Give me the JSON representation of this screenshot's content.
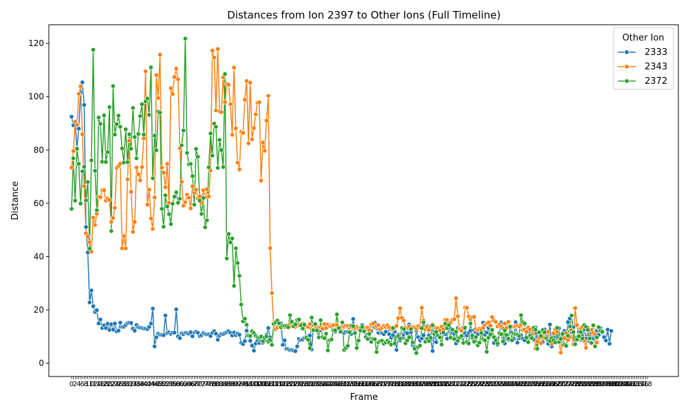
{
  "chart_data": {
    "type": "line",
    "title": "Distances from Ion 2397 to Other Ions (Full Timeline)",
    "xlabel": "Frame",
    "ylabel": "Distance",
    "ylim": [
      -5,
      127
    ],
    "y_ticks": [
      0,
      20,
      40,
      60,
      80,
      100,
      120
    ],
    "x_count": 320,
    "grid": false,
    "legend": {
      "title": "Other Ion",
      "position": "top-right"
    },
    "colors": {
      "2333": "#1f77b4",
      "2343": "#ff7f0e",
      "2372": "#2ca02c"
    },
    "series": [
      {
        "name": "2333",
        "color": "#1f77b4",
        "values": [
          92.5,
          89.3,
          90.6,
          80.6,
          88.0,
          101.6,
          105.4,
          96.9,
          51.1,
          41.5,
          22.8,
          27.3,
          21.4,
          19.2,
          19.9,
          14.9,
          16.4,
          13.2,
          14.2,
          13.2,
          14.8,
          12.5,
          14.6,
          12.6,
          14.9,
          11.9,
          12.2,
          15.2,
          13.6,
          13.7,
          14.3,
          15.0,
          15.2,
          15.1,
          12.9,
          12.2,
          14.3,
          13.5,
          13.3,
          13.2,
          13.0,
          13.0,
          12.8,
          13.6,
          14.9,
          20.5,
          6.3,
          9.7,
          11.1,
          10.7,
          10.6,
          10.5,
          17.9,
          11.3,
          11.6,
          11.0,
          11.4,
          11.5,
          20.2,
          10.1,
          9.4,
          11.2,
          10.9,
          11.4,
          11.3,
          11.1,
          11.6,
          10.1,
          11.5,
          11.8,
          11.4,
          10.2,
          10.5,
          11.3,
          11.0,
          10.8,
          10.8,
          10.2,
          11.4,
          12.0,
          11.1,
          8.8,
          10.3,
          11.0,
          10.9,
          11.3,
          11.7,
          12.0,
          11.4,
          10.4,
          11.5,
          10.5,
          11.1,
          10.7,
          7.6,
          7.2,
          8.3,
          12.2,
          10.6,
          8.4,
          6.6,
          4.7,
          7.4,
          8.5,
          7.6,
          8.4,
          7.7,
          8.7,
          10.7,
          13.2,
          9.7,
          6.9,
          14.8,
          14.6,
          13.5,
          15.0,
          15.0,
          6.9,
          8.6,
          5.4,
          5.3,
          4.9,
          5.0,
          4.7,
          4.5,
          6.3,
          9.1,
          8.7,
          8.9,
          9.5,
          9.9,
          10.0,
          10.4,
          5.2,
          13.8,
          13.0,
          13.8,
          13.0,
          12.4,
          13.0,
          12.9,
          14.1,
          13.9,
          14.4,
          13.6,
          12.2,
          11.8,
          13.1,
          13.2,
          12.2,
          13.3,
          11.3,
          11.8,
          11.7,
          12.8,
          11.0,
          16.6,
          12.6,
          12.9,
          13.3,
          13.0,
          14.3,
          13.0,
          12.5,
          10.8,
          11.7,
          12.1,
          13.9,
          15.2,
          13.1,
          11.4,
          12.2,
          11.2,
          10.9,
          11.8,
          13.6,
          10.9,
          9.6,
          10.5,
          11.9,
          5.0,
          10.7,
          8.5,
          9.4,
          10.8,
          11.5,
          11.2,
          14.5,
          11.7,
          6.7,
          6.0,
          12.2,
          9.8,
          8.6,
          9.3,
          10.5,
          12.6,
          13.9,
          10.4,
          8.9,
          4.6,
          11.8,
          7.9,
          10.1,
          10.4,
          11.4,
          12.4,
          10.9,
          9.2,
          13.5,
          13.0,
          11.5,
          11.1,
          7.4,
          13.2,
          12.9,
          12.7,
          10.3,
          11.2,
          10.4,
          11.5,
          12.2,
          9.6,
          12.4,
          11.6,
          10.8,
          12.6,
          11.8,
          15.2,
          10.7,
          11.5,
          13.3,
          10.4,
          12.6,
          7.6,
          9.3,
          6.9,
          11.3,
          15.3,
          14.8,
          7.4,
          10.1,
          8.8,
          13.3,
          11.5,
          9.1,
          15.4,
          7.7,
          9.4,
          10.5,
          9.2,
          8.6,
          12.2,
          12.8,
          11.7,
          10.0,
          8.9,
          13.4,
          9.8,
          11.6,
          10.3,
          7.9,
          12.7,
          10.1,
          7.3,
          14.5,
          6.3,
          9.8,
          11.9,
          8.4,
          13.1,
          7.6,
          10.5,
          12.1,
          9.3,
          15.4,
          16.8,
          11.7,
          13.5,
          7.5,
          9.6,
          11.8,
          8.8,
          11.9,
          12.7,
          9.2,
          12.2,
          8.2,
          11.4,
          9.3,
          10.1,
          12.3,
          10.6,
          13.2,
          11.5,
          9.8,
          8.5,
          12.6,
          7.3,
          12.1
        ],
        "_note": ""
      },
      {
        "name": "2343",
        "color": "#ff7f0e",
        "values": [
          73.4,
          79.6,
          90.6,
          89.4,
          101.1,
          103.9,
          85.9,
          66.4,
          48.7,
          47.5,
          45.4,
          41.9,
          54.6,
          51.9,
          56.1,
          62.5,
          62.3,
          64.9,
          64.9,
          61.0,
          61.8,
          61.3,
          53.0,
          54.5,
          58.3,
          73.3,
          74.0,
          74.9,
          43.1,
          47.7,
          43.1,
          69.0,
          83.5,
          64.3,
          49.3,
          53.0,
          73.4,
          70.9,
          68.6,
          73.6,
          84.4,
          109.5,
          59.5,
          65.1,
          54.3,
          50.4,
          62.2,
          108.1,
          99.5,
          115.8,
          73.4,
          71.5,
          66.0,
          74.8,
          60.2,
          103.2,
          101.0,
          107.4,
          110.5,
          106.5,
          80.7,
          68.1,
          59.1,
          60.4,
          63.2,
          62.1,
          58.1,
          66.4,
          64.0,
          65.1,
          61.8,
          62.6,
          60.1,
          64.9,
          62.2,
          65.3,
          62.6,
          72.3,
          117.3,
          114.7,
          94.9,
          117.9,
          94.5,
          94.2,
          107.3,
          98.0,
          104.8,
          104.5,
          97.2,
          85.7,
          110.9,
          88.1,
          75.2,
          72.7,
          86.8,
          86.4,
          98.9,
          105.9,
          82.5,
          105.3,
          84.0,
          88.2,
          93.4,
          97.7,
          97.9,
          68.5,
          82.8,
          79.7,
          91.0,
          100.3,
          43.2,
          26.3,
          14.4,
          12.8,
          13.4,
          14.2,
          14.0,
          14.1,
          13.5,
          14.1,
          13.3,
          14.6,
          13.8,
          13.9,
          13.6,
          14.1,
          14.8,
          14.5,
          14.8,
          13.4,
          13.9,
          13.6,
          14.7,
          12.9,
          12.7,
          14.0,
          13.5,
          13.4,
          13.4,
          12.9,
          14.7,
          13.2,
          14.5,
          13.9,
          14.0,
          14.3,
          12.7,
          14.3,
          13.2,
          12.7,
          13.8,
          13.7,
          14.1,
          14.0,
          13.2,
          13.5,
          13.3,
          13.1,
          13.7,
          13.1,
          13.0,
          12.3,
          13.5,
          12.7,
          13.3,
          12.4,
          14.6,
          14.9,
          13.4,
          13.9,
          14.3,
          12.7,
          13.3,
          14.0,
          13.6,
          14.2,
          13.4,
          12.7,
          12.8,
          13.5,
          14.0,
          16.9,
          20.6,
          17.0,
          16.0,
          13.4,
          13.2,
          13.7,
          12.8,
          13.6,
          13.4,
          12.9,
          13.9,
          13.4,
          20.8,
          16.0,
          12.7,
          13.4,
          12.5,
          13.9,
          14.6,
          13.6,
          13.2,
          13.1,
          12.4,
          13.7,
          12.6,
          16.3,
          16.2,
          15.1,
          15.2,
          16.2,
          16.5,
          24.4,
          17.6,
          12.8,
          12.2,
          13.3,
          20.9,
          20.8,
          17.5,
          16.5,
          17.3,
          17.4,
          12.8,
          12.4,
          12.9,
          12.6,
          13.4,
          14.4,
          15.0,
          15.3,
          14.1,
          17.3,
          16.0,
          15.5,
          13.8,
          14.4,
          13.7,
          13.0,
          14.9,
          13.2,
          15.5,
          14.0,
          13.9,
          13.7,
          13.9,
          14.1,
          13.8,
          14.6,
          12.4,
          12.6,
          11.8,
          13.4,
          12.7,
          10.9,
          12.3,
          5.5,
          8.2,
          9.5,
          7.5,
          10.3,
          9.6,
          11.4,
          11.8,
          8.6,
          7.3,
          11.2,
          12.6,
          11.9,
          8.4,
          4.0,
          6.8,
          9.4,
          11.3,
          8.7,
          9.8,
          12.4,
          7.1,
          20.7,
          14.3,
          9.2,
          12.9,
          13.5,
          8.4,
          5.8,
          13.4,
          9.2,
          12.5,
          11.3,
          10.8,
          7.8,
          13.1
        ],
        "_note": ""
      },
      {
        "name": "2372",
        "color": "#2ca02c",
        "values": [
          57.9,
          76.9,
          61.0,
          80.5,
          74.8,
          59.9,
          72.0,
          73.7,
          61.1,
          68.0,
          43.0,
          76.1,
          117.6,
          72.2,
          57.4,
          92.2,
          89.8,
          75.6,
          93.0,
          75.5,
          79.2,
          96.1,
          49.6,
          104.0,
          85.8,
          89.7,
          92.9,
          88.7,
          80.6,
          75.3,
          87.8,
          75.4,
          85.9,
          80.5,
          95.8,
          84.9,
          76.9,
          86.0,
          92.7,
          97.2,
          85.8,
          98.3,
          99.3,
          93.2,
          111.0,
          69.4,
          85.4,
          79.9,
          94.4,
          94.0,
          57.9,
          51.2,
          63.0,
          58.8,
          55.9,
          52.2,
          59.8,
          62.5,
          64.1,
          60.2,
          61.7,
          81.8,
          87.3,
          121.8,
          78.9,
          74.6,
          74.8,
          70.2,
          59.5,
          80.4,
          77.5,
          61.0,
          56.0,
          62.0,
          51.0,
          53.6,
          73.5,
          86.2,
          77.9,
          89.9,
          88.7,
          73.3,
          83.8,
          80.0,
          73.6,
          108.5,
          39.3,
          48.5,
          45.3,
          46.8,
          29.0,
          43.1,
          37.6,
          32.8,
          22.0,
          15.7,
          16.7,
          14.4,
          10.3,
          10.2,
          12.0,
          11.3,
          10.3,
          9.7,
          9.5,
          10.0,
          8.3,
          9.6,
          10.1,
          8.1,
          8.7,
          6.9,
          14.8,
          15.3,
          16.0,
          15.0,
          13.5,
          14.1,
          14.0,
          14.0,
          13.5,
          18.0,
          15.6,
          13.9,
          14.6,
          16.2,
          16.4,
          14.2,
          13.0,
          14.5,
          9.5,
          8.8,
          5.6,
          17.1,
          12.4,
          14.7,
          12.3,
          9.7,
          16.1,
          9.8,
          9.4,
          11.1,
          4.8,
          8.6,
          8.9,
          12.3,
          12.3,
          18.3,
          13.2,
          11.8,
          15.3,
          5.0,
          5.7,
          6.5,
          11.6,
          14.1,
          13.9,
          11.3,
          5.7,
          8.5,
          12.2,
          13.6,
          12.0,
          9.8,
          9.1,
          11.0,
          8.0,
          9.1,
          9.0,
          4.2,
          7.8,
          8.3,
          8.4,
          7.3,
          7.8,
          8.4,
          7.7,
          7.0,
          13.2,
          7.4,
          9.9,
          10.1,
          9.2,
          13.2,
          12.8,
          7.5,
          8.6,
          9.7,
          12.8,
          7.8,
          5.4,
          3.8,
          6.1,
          6.6,
          13.1,
          15.3,
          8.1,
          9.0,
          8.3,
          9.5,
          14.2,
          11.0,
          11.7,
          10.3,
          9.7,
          7.0,
          11.5,
          14.8,
          13.2,
          14.3,
          9.6,
          12.6,
          9.1,
          11.8,
          8.4,
          9.6,
          10.2,
          7.6,
          13.3,
          8.0,
          7.4,
          14.9,
          10.3,
          8.1,
          9.8,
          6.7,
          7.7,
          11.3,
          9.0,
          8.6,
          4.3,
          9.6,
          10.8,
          12.5,
          9.8,
          8.6,
          7.4,
          11.3,
          10.9,
          8.2,
          12.3,
          10.6,
          9.2,
          13.7,
          8.6,
          11.1,
          10.9,
          10.7,
          10.2,
          18.0,
          15.4,
          14.9,
          9.6,
          7.9,
          10.3,
          9.4,
          13.3,
          12.6,
          5.4,
          11.6,
          10.2,
          12.4,
          11.6,
          9.3,
          8.5,
          8.3,
          9.4,
          8.6,
          7.8,
          13.3,
          8.0,
          9.1,
          11.0,
          6.9,
          6.5,
          10.3,
          13.8,
          17.9,
          11.7,
          7.1,
          8.9,
          10.1,
          11.7,
          9.3,
          14.3,
          13.6,
          12.5,
          9.3,
          7.6,
          14.2,
          6.3,
          9.7,
          13.5,
          12.2,
          11.8
        ],
        "_note": ""
      }
    ]
  }
}
